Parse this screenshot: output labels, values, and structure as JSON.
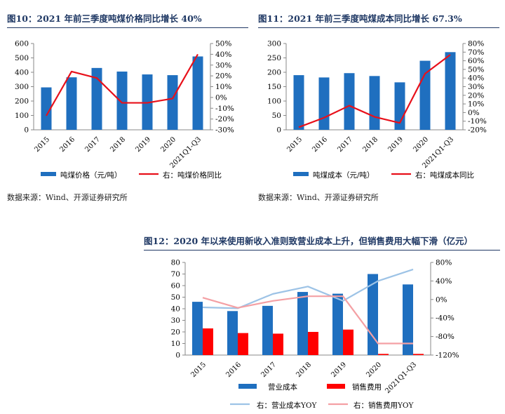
{
  "charts": [
    {
      "id": "fig10",
      "figure_title": "图10：2021 年前三季度吨煤价格同比增长 40%",
      "source": "数据来源：Wind、开源证券研究所"
    },
    {
      "id": "fig11",
      "figure_title": "图11：2021 年前三季度吨煤成本同比增长 67.3%",
      "source": "数据来源：Wind、开源证券研究所"
    },
    {
      "id": "fig12",
      "figure_title": "图12：2020 年以来使用新收入准则致营业成本上升，但销售费用大幅下滑（亿元）",
      "source": ""
    }
  ],
  "chart_data": [
    {
      "type": "bar",
      "categories": [
        "2015",
        "2016",
        "2017",
        "2018",
        "2019",
        "2020",
        "2021Q1-Q3"
      ],
      "series": [
        {
          "name": "吨煤价格（元/吨）",
          "type": "bar",
          "axis": "left",
          "color": "#1f6fbf",
          "values": [
            295,
            365,
            430,
            405,
            385,
            380,
            510
          ]
        },
        {
          "name": "右：吨煤价格同比",
          "type": "line",
          "axis": "right",
          "color": "#e8101a",
          "values": [
            -17,
            24,
            18,
            -5,
            -5,
            -1,
            40
          ]
        }
      ],
      "ylim": [
        0,
        600
      ],
      "y_ticks": [
        "0",
        "100",
        "200",
        "300",
        "400",
        "500",
        "600"
      ],
      "y2lim": [
        -30,
        50
      ],
      "y2_ticks": [
        "-30%",
        "-20%",
        "-10%",
        "0%",
        "10%",
        "20%",
        "30%",
        "40%",
        "50%"
      ],
      "grid": false,
      "legend": "bottom"
    },
    {
      "type": "bar",
      "categories": [
        "2015",
        "2016",
        "2017",
        "2018",
        "2019",
        "2020",
        "2021Q1-Q3"
      ],
      "series": [
        {
          "name": "吨煤成本（元/吨）",
          "type": "bar",
          "axis": "left",
          "color": "#1f6fbf",
          "values": [
            190,
            182,
            197,
            187,
            165,
            240,
            270
          ]
        },
        {
          "name": "右：吨煤成本同比",
          "type": "line",
          "axis": "right",
          "color": "#e8101a",
          "values": [
            -17,
            -6,
            8,
            -5,
            -12,
            45,
            67
          ]
        }
      ],
      "ylim": [
        0,
        300
      ],
      "y_ticks": [
        "0",
        "50",
        "100",
        "150",
        "200",
        "250",
        "300"
      ],
      "y2lim": [
        -20,
        80
      ],
      "y2_ticks": [
        "-20%",
        "-10%",
        "0%",
        "10%",
        "20%",
        "30%",
        "40%",
        "50%",
        "60%",
        "70%",
        "80%"
      ],
      "grid": false,
      "legend": "bottom"
    },
    {
      "type": "bar",
      "categories": [
        "2015",
        "2016",
        "2017",
        "2018",
        "2019",
        "2020",
        "2021Q1-Q3"
      ],
      "series": [
        {
          "name": "营业成本",
          "type": "bar",
          "axis": "left",
          "color": "#1f6fbf",
          "values": [
            46,
            38,
            42.5,
            54.5,
            53,
            70,
            61
          ]
        },
        {
          "name": "销售费用",
          "type": "bar",
          "axis": "left",
          "color": "#ff0000",
          "values": [
            23,
            19,
            18.5,
            20,
            22,
            1,
            1
          ]
        },
        {
          "name": "右：营业成本YOY",
          "type": "line",
          "axis": "right",
          "color": "#9dc3e6",
          "values": [
            -17,
            -19,
            12,
            28,
            -3,
            40,
            65
          ]
        },
        {
          "name": "右：销售费用YOY",
          "type": "line",
          "axis": "right",
          "color": "#f4a0a4",
          "values": [
            4,
            -18,
            -3,
            7,
            7,
            -95,
            -95
          ]
        }
      ],
      "ylim": [
        0,
        80
      ],
      "y_ticks": [
        "0",
        "10",
        "20",
        "30",
        "40",
        "50",
        "60",
        "70",
        "80"
      ],
      "y2lim": [
        -120,
        80
      ],
      "y2_ticks": [
        "-120%",
        "-80%",
        "-40%",
        "0%",
        "40%",
        "80%"
      ],
      "grid": false,
      "legend": "bottom"
    }
  ]
}
